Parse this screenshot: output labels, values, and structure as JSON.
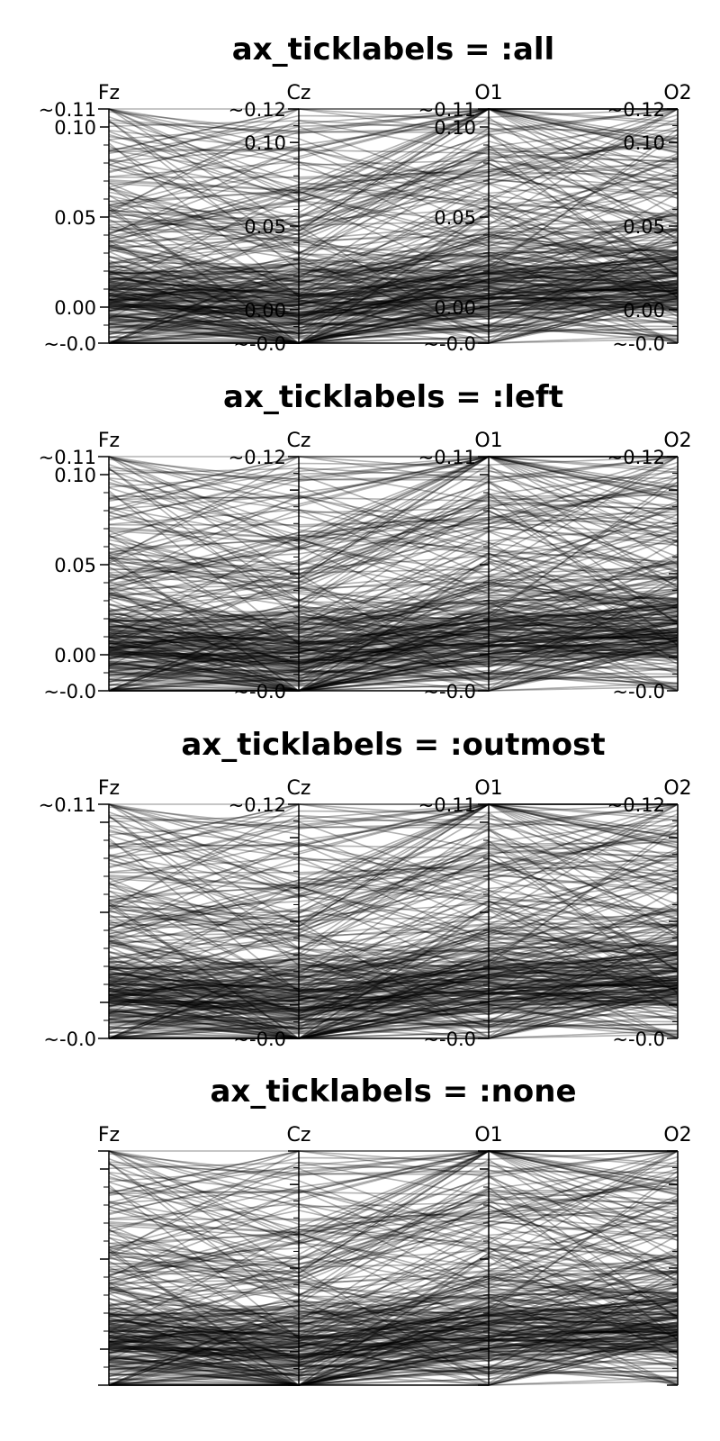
{
  "chart_data": {
    "type": "parallel_coordinates",
    "axes": [
      "Fz",
      "Cz",
      "O1",
      "O2"
    ],
    "axis_ranges": {
      "Fz": [
        -0.02,
        0.11
      ],
      "Cz": [
        -0.02,
        0.12
      ],
      "O1": [
        -0.02,
        0.11
      ],
      "O2": [
        -0.02,
        0.12
      ]
    },
    "limit_labels": {
      "Fz": [
        "~-0.0",
        "~0.11"
      ],
      "Cz": [
        "~-0.0",
        "~0.12"
      ],
      "O1": [
        "~-0.0",
        "~0.11"
      ],
      "O2": [
        "~-0.0",
        "~0.12"
      ]
    },
    "inner_ticks": {
      "Fz": [
        0.0,
        0.05,
        0.1
      ],
      "Cz": [
        0.0,
        0.05,
        0.1
      ],
      "O1": [
        0.0,
        0.05,
        0.1
      ],
      "O2": [
        0.0,
        0.05,
        0.1
      ]
    },
    "inner_tick_labels": [
      "0.00",
      "0.05",
      "0.10"
    ],
    "line_color": "#000000",
    "line_alpha": 0.3,
    "approx_line_count": 320,
    "panels": [
      {
        "title": "ax_ticklabels = :all",
        "ticklabels": "all"
      },
      {
        "title": "ax_ticklabels = :left",
        "ticklabels": "left"
      },
      {
        "title": "ax_ticklabels = :outmost",
        "ticklabels": "outmost"
      },
      {
        "title": "ax_ticklabels = :none",
        "ticklabels": "none"
      }
    ]
  }
}
